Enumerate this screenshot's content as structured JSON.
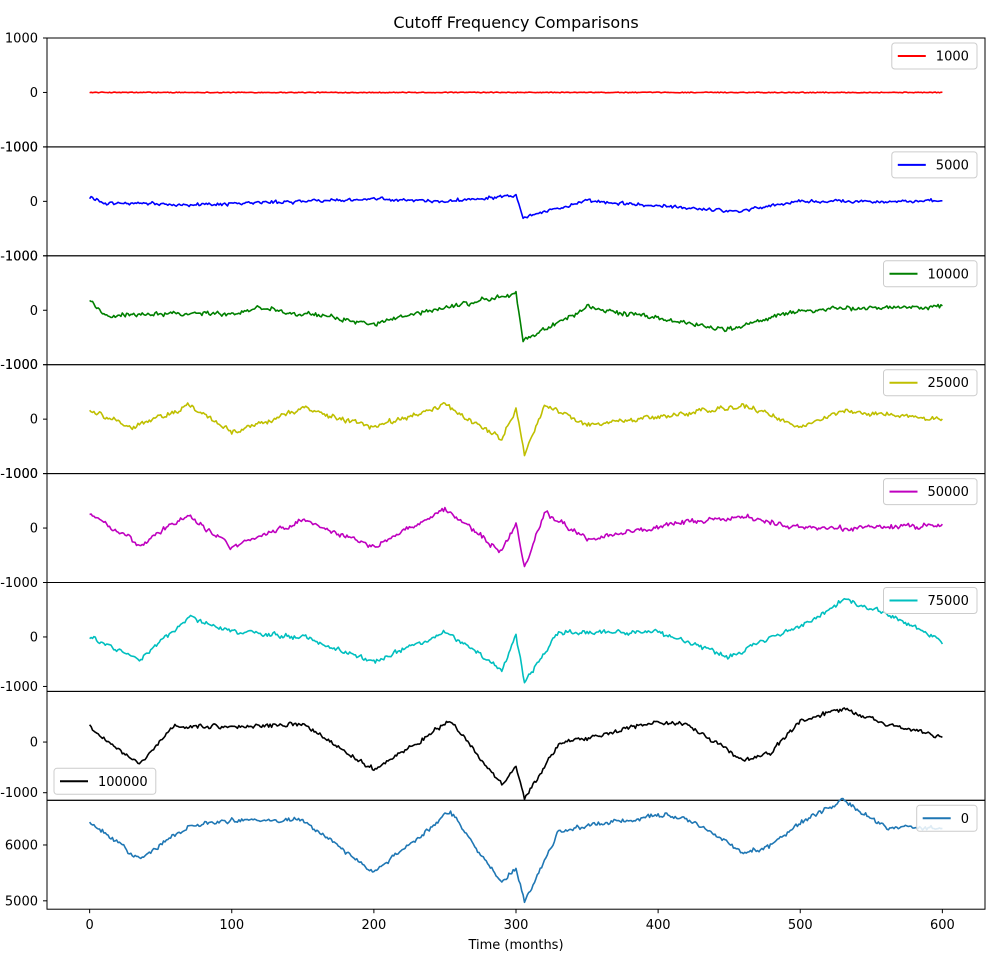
{
  "chart_data": {
    "type": "line",
    "title": "Cutoff Frequency Comparisons",
    "xlabel": "Time (months)",
    "ylabel": "",
    "xlim": [
      -30,
      630
    ],
    "x_ticks": [
      0,
      100,
      200,
      300,
      400,
      500,
      600
    ],
    "x_range": [
      0,
      600
    ],
    "num_points": 601,
    "grid": false,
    "panels": [
      {
        "series_name": "1000",
        "color": "#ff0000",
        "ylim": [
          -1000,
          1000
        ],
        "y_ticks": [
          -1000,
          0,
          1000
        ],
        "legend": "top-right",
        "keypoints": [
          [
            0,
            0
          ],
          [
            600,
            0
          ]
        ],
        "noise": {
          "hf": 14,
          "mf": 0,
          "lf": 0
        }
      },
      {
        "series_name": "5000",
        "color": "#0000ff",
        "ylim": [
          -1000,
          1000
        ],
        "y_ticks": [
          -1000,
          0,
          1000
        ],
        "legend": "top-right",
        "keypoints": [
          [
            0,
            80
          ],
          [
            10,
            -30
          ],
          [
            75,
            -60
          ],
          [
            150,
            0
          ],
          [
            195,
            40
          ],
          [
            250,
            0
          ],
          [
            300,
            120
          ],
          [
            305,
            -280
          ],
          [
            350,
            0
          ],
          [
            455,
            -180
          ],
          [
            500,
            0
          ],
          [
            600,
            0
          ]
        ],
        "noise": {
          "hf": 40,
          "mf": 35,
          "lf": 0
        }
      },
      {
        "series_name": "10000",
        "color": "#008000",
        "ylim": [
          -1000,
          1000
        ],
        "y_ticks": [
          -1000,
          0,
          1000
        ],
        "legend": "top-right",
        "keypoints": [
          [
            0,
            200
          ],
          [
            10,
            -100
          ],
          [
            50,
            -50
          ],
          [
            100,
            -60
          ],
          [
            120,
            50
          ],
          [
            200,
            -250
          ],
          [
            250,
            50
          ],
          [
            300,
            300
          ],
          [
            305,
            -550
          ],
          [
            350,
            50
          ],
          [
            450,
            -350
          ],
          [
            500,
            0
          ],
          [
            600,
            80
          ]
        ],
        "noise": {
          "hf": 50,
          "mf": 55,
          "lf": 0
        }
      },
      {
        "series_name": "25000",
        "color": "#bfbf00",
        "ylim": [
          -1000,
          1000
        ],
        "y_ticks": [
          -1000,
          0,
          1000
        ],
        "legend": "top-right",
        "keypoints": [
          [
            0,
            150
          ],
          [
            30,
            -150
          ],
          [
            70,
            250
          ],
          [
            100,
            -250
          ],
          [
            150,
            200
          ],
          [
            200,
            -150
          ],
          [
            250,
            250
          ],
          [
            290,
            -350
          ],
          [
            300,
            200
          ],
          [
            306,
            -650
          ],
          [
            320,
            250
          ],
          [
            350,
            -100
          ],
          [
            420,
            100
          ],
          [
            460,
            250
          ],
          [
            500,
            -150
          ],
          [
            530,
            150
          ],
          [
            600,
            0
          ]
        ],
        "noise": {
          "hf": 55,
          "mf": 60,
          "lf": 0
        }
      },
      {
        "series_name": "50000",
        "color": "#bf00bf",
        "ylim": [
          -1000,
          1000
        ],
        "y_ticks": [
          -1000,
          0,
          1000
        ],
        "legend": "top-right",
        "keypoints": [
          [
            0,
            250
          ],
          [
            35,
            -300
          ],
          [
            70,
            250
          ],
          [
            100,
            -350
          ],
          [
            150,
            150
          ],
          [
            200,
            -350
          ],
          [
            250,
            350
          ],
          [
            290,
            -450
          ],
          [
            300,
            100
          ],
          [
            306,
            -750
          ],
          [
            320,
            300
          ],
          [
            350,
            -200
          ],
          [
            420,
            100
          ],
          [
            460,
            200
          ],
          [
            500,
            0
          ],
          [
            530,
            0
          ],
          [
            600,
            50
          ]
        ],
        "noise": {
          "hf": 50,
          "mf": 60,
          "lf": 0
        }
      },
      {
        "series_name": "75000",
        "color": "#00bfbf",
        "ylim": [
          -1100,
          1100
        ],
        "y_ticks": [
          -1000,
          0
        ],
        "legend": "top-right",
        "keypoints": [
          [
            0,
            0
          ],
          [
            35,
            -450
          ],
          [
            70,
            400
          ],
          [
            100,
            100
          ],
          [
            150,
            0
          ],
          [
            200,
            -500
          ],
          [
            250,
            100
          ],
          [
            290,
            -650
          ],
          [
            300,
            50
          ],
          [
            306,
            -900
          ],
          [
            330,
            100
          ],
          [
            400,
            100
          ],
          [
            450,
            -400
          ],
          [
            480,
            0
          ],
          [
            500,
            200
          ],
          [
            530,
            750
          ],
          [
            560,
            500
          ],
          [
            600,
            -100
          ]
        ],
        "noise": {
          "hf": 55,
          "mf": 60,
          "lf": 0
        }
      },
      {
        "series_name": "100000",
        "color": "#000000",
        "ylim": [
          -1150,
          1000
        ],
        "y_ticks": [
          -1000,
          0
        ],
        "legend": "bottom-left",
        "keypoints": [
          [
            0,
            300
          ],
          [
            35,
            -450
          ],
          [
            60,
            300
          ],
          [
            100,
            300
          ],
          [
            150,
            350
          ],
          [
            200,
            -550
          ],
          [
            254,
            420
          ],
          [
            290,
            -850
          ],
          [
            300,
            -500
          ],
          [
            306,
            -1100
          ],
          [
            330,
            -50
          ],
          [
            400,
            400
          ],
          [
            420,
            350
          ],
          [
            460,
            -350
          ],
          [
            480,
            -200
          ],
          [
            500,
            400
          ],
          [
            530,
            650
          ],
          [
            560,
            350
          ],
          [
            600,
            100
          ]
        ],
        "noise": {
          "hf": 50,
          "mf": 55,
          "lf": 0
        }
      },
      {
        "series_name": "0",
        "color": "#1f77b4",
        "ylim": [
          4850,
          6800
        ],
        "y_ticks": [
          5000,
          6000
        ],
        "legend": "top-right",
        "keypoints": [
          [
            0,
            6400
          ],
          [
            35,
            5750
          ],
          [
            70,
            6350
          ],
          [
            100,
            6450
          ],
          [
            150,
            6450
          ],
          [
            200,
            5500
          ],
          [
            254,
            6600
          ],
          [
            290,
            5300
          ],
          [
            300,
            5600
          ],
          [
            306,
            4950
          ],
          [
            330,
            6250
          ],
          [
            400,
            6550
          ],
          [
            420,
            6500
          ],
          [
            460,
            5850
          ],
          [
            480,
            6000
          ],
          [
            500,
            6400
          ],
          [
            530,
            6800
          ],
          [
            560,
            6300
          ],
          [
            600,
            6300
          ]
        ],
        "noise": {
          "hf": 45,
          "mf": 55,
          "lf": 0
        }
      }
    ]
  }
}
